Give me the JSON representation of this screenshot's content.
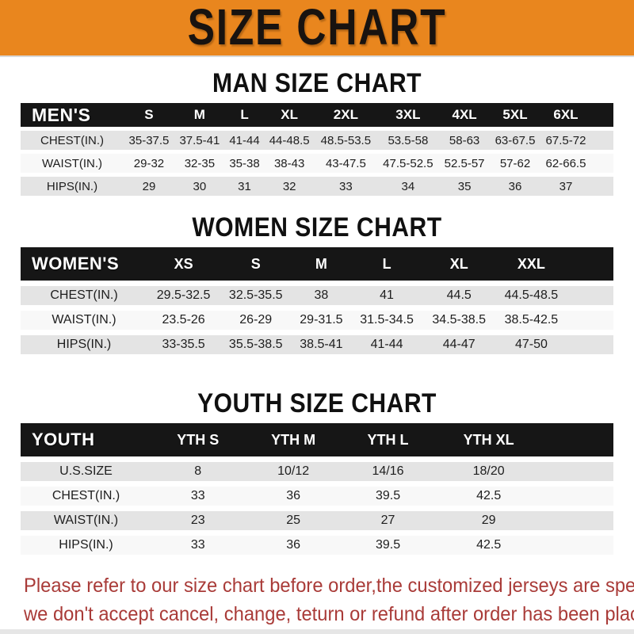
{
  "banner": {
    "title": "SIZE CHART"
  },
  "colors": {
    "banner_orange": "#E9861E",
    "header_black": "#161616",
    "row_gray": "#E4E4E4",
    "row_light": "#F8F8F8",
    "notice_red": "#A93B38"
  },
  "sections": [
    {
      "id": "men",
      "heading": "MAN SIZE CHART",
      "corner": "MEN'S",
      "columns": [
        "S",
        "M",
        "L",
        "XL",
        "2XL",
        "3XL",
        "4XL",
        "5XL",
        "6XL"
      ],
      "rows": [
        {
          "label": "CHEST(IN.)",
          "values": [
            "35-37.5",
            "37.5-41",
            "41-44",
            "44-48.5",
            "48.5-53.5",
            "53.5-58",
            "58-63",
            "63-67.5",
            "67.5-72"
          ]
        },
        {
          "label": "WAIST(IN.)",
          "values": [
            "29-32",
            "32-35",
            "35-38",
            "38-43",
            "43-47.5",
            "47.5-52.5",
            "52.5-57",
            "57-62",
            "62-66.5"
          ]
        },
        {
          "label": "HIPS(IN.)",
          "values": [
            "29",
            "30",
            "31",
            "32",
            "33",
            "34",
            "35",
            "36",
            "37"
          ]
        }
      ]
    },
    {
      "id": "women",
      "heading": "WOMEN SIZE CHART",
      "corner": "WOMEN'S",
      "columns": [
        "XS",
        "S",
        "M",
        "L",
        "XL",
        "XXL"
      ],
      "rows": [
        {
          "label": "CHEST(IN.)",
          "values": [
            "29.5-32.5",
            "32.5-35.5",
            "38",
            "41",
            "44.5",
            "44.5-48.5"
          ]
        },
        {
          "label": "WAIST(IN.)",
          "values": [
            "23.5-26",
            "26-29",
            "29-31.5",
            "31.5-34.5",
            "34.5-38.5",
            "38.5-42.5"
          ]
        },
        {
          "label": "HIPS(IN.)",
          "values": [
            "33-35.5",
            "35.5-38.5",
            "38.5-41",
            "41-44",
            "44-47",
            "47-50"
          ]
        }
      ]
    },
    {
      "id": "youth",
      "heading": "YOUTH SIZE CHART",
      "corner": "YOUTH",
      "columns": [
        "YTH S",
        "YTH M",
        "YTH L",
        "YTH XL"
      ],
      "rows": [
        {
          "label": "U.S.SIZE",
          "values": [
            "8",
            "10/12",
            "14/16",
            "18/20"
          ]
        },
        {
          "label": "CHEST(IN.)",
          "values": [
            "33",
            "36",
            "39.5",
            "42.5"
          ]
        },
        {
          "label": "WAIST(IN.)",
          "values": [
            "23",
            "25",
            "27",
            "29"
          ]
        },
        {
          "label": "HIPS(IN.)",
          "values": [
            "33",
            "36",
            "39.5",
            "42.5"
          ]
        }
      ]
    }
  ],
  "footer": {
    "line1": "Please refer to our size chart before order,the customized jerseys are special products,",
    "line2": "we don't accept cancel, change, teturn or refund after order has been placed!"
  }
}
